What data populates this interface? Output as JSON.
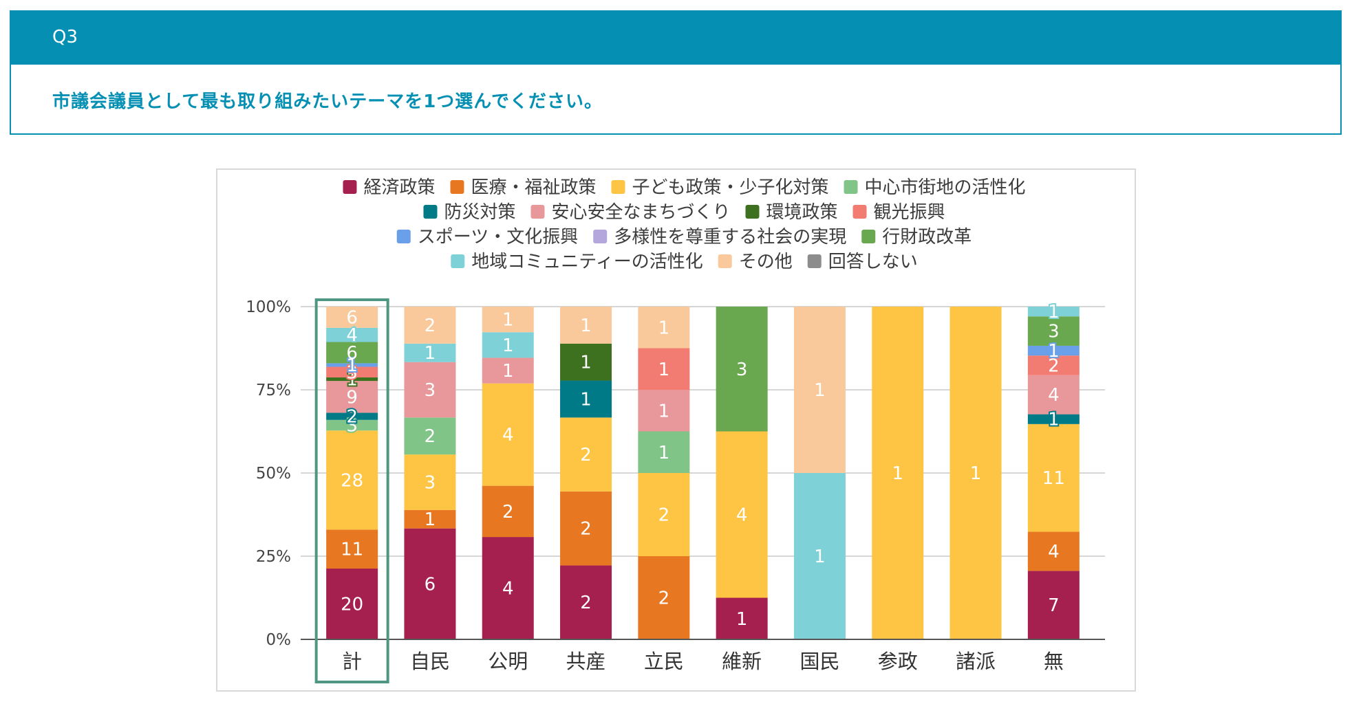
{
  "question": {
    "number": "Q3",
    "text": "市議会議員として最も取り組みたいテーマを1つ選んでください。"
  },
  "colors": {
    "header_bg": "#0590b3",
    "highlight_box": "#4e9783"
  },
  "chart_data": {
    "type": "bar",
    "stacked": "percent",
    "title": "",
    "xlabel": "",
    "ylabel": "",
    "ylim": [
      0,
      100
    ],
    "yticks": [
      "0%",
      "25%",
      "50%",
      "75%",
      "100%"
    ],
    "grid": true,
    "legend_position": "top",
    "highlighted_category": "計",
    "categories": [
      "計",
      "自民",
      "公明",
      "共産",
      "立民",
      "維新",
      "国民",
      "参政",
      "諸派",
      "無"
    ],
    "series": [
      {
        "name": "経済政策",
        "color": "#a51f4f",
        "values": [
          20,
          6,
          4,
          2,
          0,
          1,
          0,
          0,
          0,
          7
        ]
      },
      {
        "name": "医療・福祉政策",
        "color": "#e87722",
        "values": [
          11,
          1,
          2,
          2,
          2,
          0,
          0,
          0,
          0,
          4
        ]
      },
      {
        "name": "子ども政策・少子化対策",
        "color": "#fdc543",
        "values": [
          28,
          3,
          4,
          2,
          2,
          4,
          0,
          1,
          1,
          11
        ]
      },
      {
        "name": "中心市街地の活性化",
        "color": "#81c487",
        "values": [
          3,
          2,
          0,
          0,
          1,
          0,
          0,
          0,
          0,
          0
        ]
      },
      {
        "name": "防災対策",
        "color": "#007a87",
        "values": [
          2,
          0,
          0,
          1,
          0,
          0,
          0,
          0,
          0,
          1
        ]
      },
      {
        "name": "安心安全なまちづくり",
        "color": "#e8989a",
        "values": [
          9,
          3,
          1,
          0,
          1,
          0,
          0,
          0,
          0,
          4
        ]
      },
      {
        "name": "環境政策",
        "color": "#3d711f",
        "values": [
          1,
          0,
          0,
          1,
          0,
          0,
          0,
          0,
          0,
          0
        ]
      },
      {
        "name": "観光振興",
        "color": "#f27b72",
        "values": [
          3,
          0,
          0,
          0,
          1,
          0,
          0,
          0,
          0,
          2
        ]
      },
      {
        "name": "スポーツ・文化振興",
        "color": "#69a0e9",
        "values": [
          1,
          0,
          0,
          0,
          0,
          0,
          0,
          0,
          0,
          1
        ]
      },
      {
        "name": "多様性を尊重する社会の実現",
        "color": "#b3a7dc",
        "values": [
          0,
          0,
          0,
          0,
          0,
          0,
          0,
          0,
          0,
          0
        ]
      },
      {
        "name": "行財政改革",
        "color": "#6aa84f",
        "values": [
          6,
          0,
          0,
          0,
          0,
          3,
          0,
          0,
          0,
          3
        ]
      },
      {
        "name": "地域コミュニティーの活性化",
        "color": "#7dd1d7",
        "values": [
          4,
          1,
          1,
          0,
          0,
          0,
          1,
          0,
          0,
          1
        ]
      },
      {
        "name": "その他",
        "color": "#f9c99b",
        "values": [
          6,
          2,
          1,
          1,
          1,
          0,
          1,
          0,
          0,
          0
        ]
      },
      {
        "name": "回答しない",
        "color": "#8c8c8c",
        "values": [
          0,
          0,
          0,
          0,
          0,
          0,
          0,
          0,
          0,
          0
        ]
      }
    ],
    "legend_rows": [
      [
        0,
        1,
        2,
        3
      ],
      [
        4,
        5,
        6,
        7
      ],
      [
        8,
        9,
        10
      ],
      [
        11,
        12,
        13
      ]
    ]
  }
}
